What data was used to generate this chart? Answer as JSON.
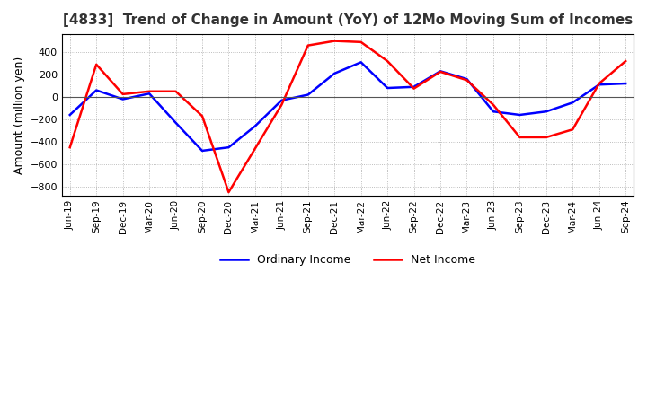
{
  "title": "[4833]  Trend of Change in Amount (YoY) of 12Mo Moving Sum of Incomes",
  "ylabel": "Amount (million yen)",
  "ylim": [
    -880,
    560
  ],
  "yticks": [
    -800,
    -600,
    -400,
    -200,
    0,
    200,
    400
  ],
  "background_color": "#ffffff",
  "plot_bg_color": "#ffffff",
  "grid_color": "#aaaaaa",
  "ordinary_income_color": "#0000ff",
  "net_income_color": "#ff0000",
  "x_labels": [
    "Jun-19",
    "Sep-19",
    "Dec-19",
    "Mar-20",
    "Jun-20",
    "Sep-20",
    "Dec-20",
    "Mar-21",
    "Jun-21",
    "Sep-21",
    "Dec-21",
    "Mar-22",
    "Jun-22",
    "Sep-22",
    "Dec-22",
    "Mar-23",
    "Jun-23",
    "Sep-23",
    "Dec-23",
    "Mar-24",
    "Jun-24",
    "Sep-24"
  ],
  "ordinary_income": [
    -160,
    60,
    -20,
    30,
    -230,
    -480,
    -450,
    -260,
    -30,
    20,
    210,
    310,
    80,
    90,
    230,
    160,
    -130,
    -160,
    -130,
    -50,
    110,
    120
  ],
  "net_income": [
    -450,
    290,
    25,
    50,
    50,
    -170,
    -850,
    -460,
    -70,
    460,
    500,
    490,
    320,
    75,
    225,
    150,
    -70,
    -360,
    -360,
    -290,
    120,
    320
  ]
}
